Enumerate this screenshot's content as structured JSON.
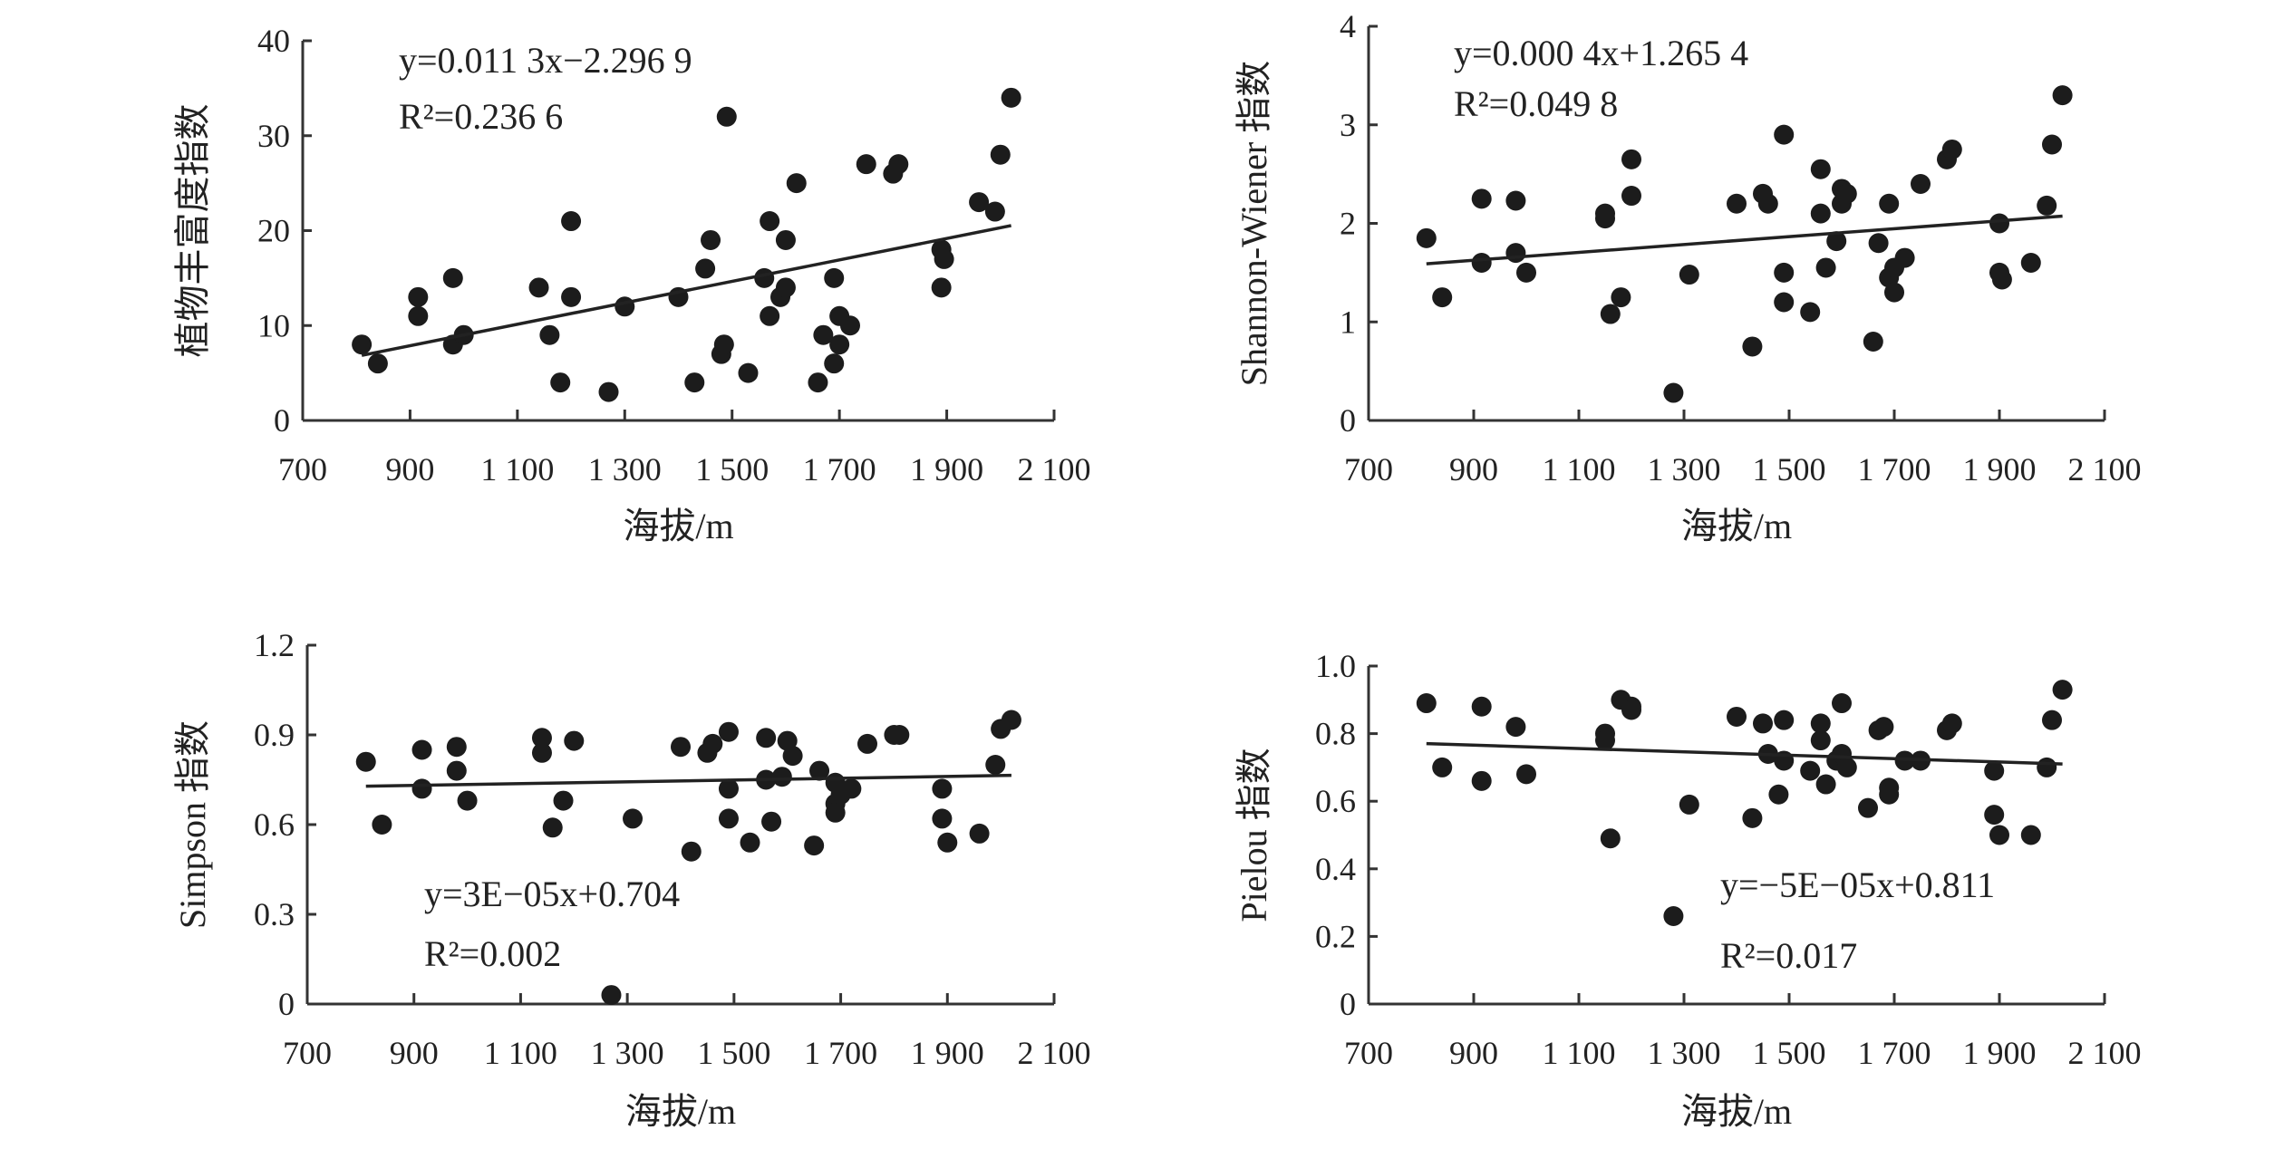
{
  "chart_data": [
    {
      "type": "scatter",
      "id": "richness",
      "title": "",
      "xlabel": "海拔/m",
      "ylabel": "植物丰富度指数",
      "xlim": [
        700,
        2100
      ],
      "ylim": [
        0,
        40
      ],
      "xticks": [
        700,
        900,
        1100,
        1300,
        1500,
        1700,
        1900,
        2100
      ],
      "xtick_labels": [
        "700",
        "900",
        "1 100",
        "1 300",
        "1 500",
        "1 700",
        "1 900",
        "2 100"
      ],
      "yticks": [
        0,
        10,
        20,
        30,
        40
      ],
      "ytick_labels": [
        "0",
        "10",
        "20",
        "30",
        "40"
      ],
      "equation": "y=0.011 3x−2.296 9",
      "r2": "R²=0.236 6",
      "trend": {
        "slope": 0.0113,
        "intercept": -2.2969,
        "x_range": [
          810,
          2020
        ]
      },
      "points": [
        [
          810,
          8
        ],
        [
          840,
          6
        ],
        [
          915,
          13
        ],
        [
          915,
          11
        ],
        [
          980,
          15
        ],
        [
          980,
          8
        ],
        [
          1000,
          9
        ],
        [
          1140,
          14
        ],
        [
          1160,
          9
        ],
        [
          1180,
          4
        ],
        [
          1200,
          21
        ],
        [
          1200,
          13
        ],
        [
          1300,
          12
        ],
        [
          1270,
          3
        ],
        [
          1400,
          13
        ],
        [
          1430,
          4
        ],
        [
          1450,
          16
        ],
        [
          1460,
          19
        ],
        [
          1480,
          7
        ],
        [
          1485,
          8
        ],
        [
          1490,
          32
        ],
        [
          1530,
          5
        ],
        [
          1560,
          15
        ],
        [
          1570,
          21
        ],
        [
          1570,
          11
        ],
        [
          1590,
          13
        ],
        [
          1600,
          14
        ],
        [
          1600,
          19
        ],
        [
          1620,
          25
        ],
        [
          1660,
          4
        ],
        [
          1670,
          9
        ],
        [
          1690,
          15
        ],
        [
          1690,
          6
        ],
        [
          1700,
          11
        ],
        [
          1700,
          8
        ],
        [
          1720,
          10
        ],
        [
          1750,
          27
        ],
        [
          1800,
          26
        ],
        [
          1810,
          27
        ],
        [
          1890,
          18
        ],
        [
          1895,
          17
        ],
        [
          1890,
          14
        ],
        [
          1960,
          23
        ],
        [
          1990,
          22
        ],
        [
          2000,
          28
        ],
        [
          2020,
          34
        ]
      ]
    },
    {
      "type": "scatter",
      "id": "shannon",
      "title": "",
      "xlabel": "海拔/m",
      "ylabel": "Shannon-Wiener 指数",
      "xlim": [
        700,
        2100
      ],
      "ylim": [
        0,
        4
      ],
      "xticks": [
        700,
        900,
        1100,
        1300,
        1500,
        1700,
        1900,
        2100
      ],
      "xtick_labels": [
        "700",
        "900",
        "1 100",
        "1 300",
        "1 500",
        "1 700",
        "1 900",
        "2 100"
      ],
      "yticks": [
        0,
        1,
        2,
        3,
        4
      ],
      "ytick_labels": [
        "0",
        "1",
        "2",
        "3",
        "4"
      ],
      "equation": "y=0.000 4x+1.265 4",
      "r2": "R²=0.049 8",
      "trend": {
        "slope": 0.0004,
        "intercept": 1.2654,
        "x_range": [
          810,
          2020
        ]
      },
      "points": [
        [
          810,
          1.85
        ],
        [
          840,
          1.25
        ],
        [
          915,
          2.25
        ],
        [
          915,
          1.6
        ],
        [
          980,
          2.23
        ],
        [
          980,
          1.7
        ],
        [
          1000,
          1.5
        ],
        [
          1150,
          2.1
        ],
        [
          1150,
          2.05
        ],
        [
          1160,
          1.08
        ],
        [
          1180,
          1.25
        ],
        [
          1200,
          2.65
        ],
        [
          1200,
          2.28
        ],
        [
          1280,
          0.28
        ],
        [
          1310,
          1.48
        ],
        [
          1400,
          2.2
        ],
        [
          1430,
          0.75
        ],
        [
          1450,
          2.3
        ],
        [
          1460,
          2.2
        ],
        [
          1490,
          2.9
        ],
        [
          1490,
          1.5
        ],
        [
          1490,
          1.2
        ],
        [
          1540,
          1.1
        ],
        [
          1560,
          2.55
        ],
        [
          1560,
          2.1
        ],
        [
          1570,
          1.55
        ],
        [
          1590,
          1.82
        ],
        [
          1600,
          2.35
        ],
        [
          1600,
          2.2
        ],
        [
          1610,
          2.3
        ],
        [
          1660,
          0.8
        ],
        [
          1670,
          1.8
        ],
        [
          1690,
          2.2
        ],
        [
          1690,
          1.45
        ],
        [
          1700,
          1.3
        ],
        [
          1700,
          1.55
        ],
        [
          1720,
          1.65
        ],
        [
          1750,
          2.4
        ],
        [
          1800,
          2.65
        ],
        [
          1810,
          2.75
        ],
        [
          1900,
          2.0
        ],
        [
          1900,
          1.5
        ],
        [
          1905,
          1.43
        ],
        [
          1960,
          1.6
        ],
        [
          1990,
          2.18
        ],
        [
          2000,
          2.8
        ],
        [
          2020,
          3.3
        ]
      ]
    },
    {
      "type": "scatter",
      "id": "simpson",
      "title": "",
      "xlabel": "海拔/m",
      "ylabel": "Simpson 指数",
      "xlim": [
        700,
        2100
      ],
      "ylim": [
        0,
        1.2
      ],
      "xticks": [
        700,
        900,
        1100,
        1300,
        1500,
        1700,
        1900,
        2100
      ],
      "xtick_labels": [
        "700",
        "900",
        "1 100",
        "1 300",
        "1 500",
        "1 700",
        "1 900",
        "2 100"
      ],
      "yticks": [
        0,
        0.3,
        0.6,
        0.9,
        1.2
      ],
      "ytick_labels": [
        "0",
        "0.3",
        "0.6",
        "0.9",
        "1.2"
      ],
      "equation": "y=3E−05x+0.704",
      "r2": "R²=0.002",
      "trend": {
        "slope": 3e-05,
        "intercept": 0.704,
        "x_range": [
          810,
          2020
        ]
      },
      "points": [
        [
          810,
          0.81
        ],
        [
          840,
          0.6
        ],
        [
          915,
          0.85
        ],
        [
          915,
          0.72
        ],
        [
          980,
          0.86
        ],
        [
          980,
          0.78
        ],
        [
          1000,
          0.68
        ],
        [
          1140,
          0.89
        ],
        [
          1140,
          0.84
        ],
        [
          1160,
          0.59
        ],
        [
          1180,
          0.68
        ],
        [
          1200,
          0.88
        ],
        [
          1270,
          0.03
        ],
        [
          1310,
          0.62
        ],
        [
          1400,
          0.86
        ],
        [
          1420,
          0.51
        ],
        [
          1450,
          0.84
        ],
        [
          1460,
          0.87
        ],
        [
          1490,
          0.91
        ],
        [
          1490,
          0.72
        ],
        [
          1490,
          0.62
        ],
        [
          1530,
          0.54
        ],
        [
          1560,
          0.75
        ],
        [
          1560,
          0.89
        ],
        [
          1570,
          0.61
        ],
        [
          1590,
          0.76
        ],
        [
          1600,
          0.88
        ],
        [
          1610,
          0.83
        ],
        [
          1650,
          0.53
        ],
        [
          1660,
          0.78
        ],
        [
          1690,
          0.74
        ],
        [
          1690,
          0.67
        ],
        [
          1690,
          0.64
        ],
        [
          1700,
          0.7
        ],
        [
          1720,
          0.72
        ],
        [
          1750,
          0.87
        ],
        [
          1800,
          0.9
        ],
        [
          1810,
          0.9
        ],
        [
          1890,
          0.72
        ],
        [
          1890,
          0.62
        ],
        [
          1900,
          0.54
        ],
        [
          1960,
          0.57
        ],
        [
          1990,
          0.8
        ],
        [
          2000,
          0.92
        ],
        [
          2020,
          0.95
        ]
      ]
    },
    {
      "type": "scatter",
      "id": "pielou",
      "title": "",
      "xlabel": "海拔/m",
      "ylabel": "Pielou 指数",
      "xlim": [
        700,
        2100
      ],
      "ylim": [
        0,
        1.0
      ],
      "xticks": [
        700,
        900,
        1100,
        1300,
        1500,
        1700,
        1900,
        2100
      ],
      "xtick_labels": [
        "700",
        "900",
        "1 100",
        "1 300",
        "1 500",
        "1 700",
        "1 900",
        "2 100"
      ],
      "yticks": [
        0,
        0.2,
        0.4,
        0.6,
        0.8,
        1.0
      ],
      "ytick_labels": [
        "0",
        "0.2",
        "0.4",
        "0.6",
        "0.8",
        "1.0"
      ],
      "equation": "y=−5E−05x+0.811",
      "r2": "R²=0.017",
      "trend": {
        "slope": -5e-05,
        "intercept": 0.811,
        "x_range": [
          810,
          2020
        ]
      },
      "points": [
        [
          810,
          0.89
        ],
        [
          840,
          0.7
        ],
        [
          915,
          0.88
        ],
        [
          915,
          0.66
        ],
        [
          980,
          0.82
        ],
        [
          1000,
          0.68
        ],
        [
          1150,
          0.8
        ],
        [
          1150,
          0.78
        ],
        [
          1160,
          0.49
        ],
        [
          1180,
          0.9
        ],
        [
          1200,
          0.88
        ],
        [
          1200,
          0.87
        ],
        [
          1280,
          0.26
        ],
        [
          1310,
          0.59
        ],
        [
          1400,
          0.85
        ],
        [
          1430,
          0.55
        ],
        [
          1450,
          0.83
        ],
        [
          1460,
          0.74
        ],
        [
          1480,
          0.62
        ],
        [
          1490,
          0.84
        ],
        [
          1490,
          0.72
        ],
        [
          1540,
          0.69
        ],
        [
          1560,
          0.78
        ],
        [
          1560,
          0.83
        ],
        [
          1570,
          0.65
        ],
        [
          1590,
          0.72
        ],
        [
          1600,
          0.89
        ],
        [
          1600,
          0.74
        ],
        [
          1610,
          0.7
        ],
        [
          1650,
          0.58
        ],
        [
          1670,
          0.81
        ],
        [
          1680,
          0.82
        ],
        [
          1690,
          0.64
        ],
        [
          1690,
          0.62
        ],
        [
          1720,
          0.72
        ],
        [
          1750,
          0.72
        ],
        [
          1800,
          0.81
        ],
        [
          1810,
          0.83
        ],
        [
          1890,
          0.69
        ],
        [
          1890,
          0.56
        ],
        [
          1900,
          0.5
        ],
        [
          1960,
          0.5
        ],
        [
          1990,
          0.7
        ],
        [
          2000,
          0.84
        ],
        [
          2020,
          0.93
        ]
      ]
    }
  ]
}
